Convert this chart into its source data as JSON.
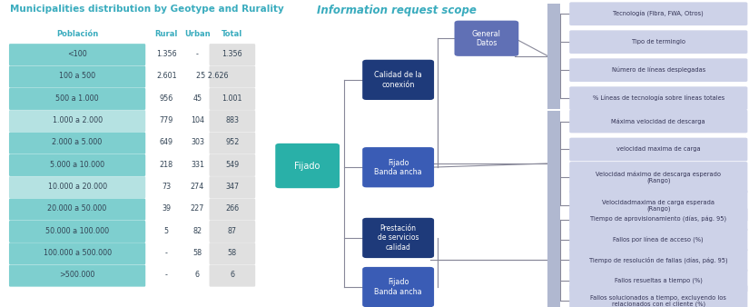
{
  "title_left": "Municipalities distribution by Geotype and Rurality",
  "title_right": "Information request scope",
  "table_header": [
    "Población",
    "Rural",
    "Urban",
    "Total"
  ],
  "table_rows": [
    [
      "<100",
      "1.356",
      "-",
      "1.356"
    ],
    [
      "100 a 500",
      "2.601",
      "25 2.626",
      "",
      ""
    ],
    [
      "500 a 1.000",
      "956",
      "45",
      "1.001"
    ],
    [
      "1.000 a 2.000",
      "779",
      "104",
      "883"
    ],
    [
      "2.000 a 5.000",
      "649",
      "303",
      "952"
    ],
    [
      "5.000 a 10.000",
      "218",
      "331",
      "549"
    ],
    [
      "10.000 a 20.000",
      "73",
      "274",
      "347"
    ],
    [
      "20.000 a 50.000",
      "39",
      "227",
      "266"
    ],
    [
      "50.000 a 100.000",
      "5",
      "82",
      "87"
    ],
    [
      "100.000 a 500.000",
      "-",
      "58",
      "58"
    ],
    [
      ">500.000",
      "-",
      "6",
      "6"
    ]
  ],
  "table_rural": [
    "1.356",
    "2.601",
    "956",
    "779",
    "649",
    "218",
    "73",
    "39",
    "5",
    "-",
    "-"
  ],
  "table_urban": [
    "-",
    "25",
    "45",
    "104",
    "303",
    "331",
    "274",
    "227",
    "82",
    "58",
    "6"
  ],
  "table_total": [
    "1.356",
    "2.626",
    "1.001",
    "883",
    "952",
    "549",
    "347",
    "266",
    "87",
    "58",
    "6"
  ],
  "table_rural_urban_merged": [
    false,
    true,
    false,
    false,
    false,
    false,
    false,
    false,
    false,
    false,
    false
  ],
  "row_bg_colors": [
    "#7ecfcf",
    "#7ecfcf",
    "#7ecfcf",
    "#b5e2e2",
    "#7ecfcf",
    "#7ecfcf",
    "#b5e2e2",
    "#7ecfcf",
    "#7ecfcf",
    "#7ecfcf",
    "#7ecfcf"
  ],
  "total_bg": "#e0e0e0",
  "header_color": "#3aacbe",
  "title_color": "#3aacbe",
  "right_labels_group1": [
    "Tecnología (Fibra, FWA, Otros)",
    "Tipo de terminglo",
    "Número de líneas desplegadas",
    "% Líneas de tecnología sobre líneas totales"
  ],
  "right_labels_group2": [
    "Máxima velocidad de descarga",
    "velocidad maxima de carga",
    "Velocidad máximo de descarga esperado\n(Rango)",
    "Velocidadmaxima de carga esperada\n(Rango)"
  ],
  "right_labels_group3": [
    "Tiempo de aprovisionamiento (días, pág. 95)",
    "Fallos por línea de acceso (%)",
    "Tiempo de resolución de fallas (días, pág. 95)",
    "Fallos resueltas a tiempo (%)",
    "Fallos solucionados a tiempo, excluyendo los\nrelacionados con el cliente (%)"
  ],
  "label_box_color": "#cdd2e8",
  "label_text_color": "#333355",
  "line_color": "#888899"
}
